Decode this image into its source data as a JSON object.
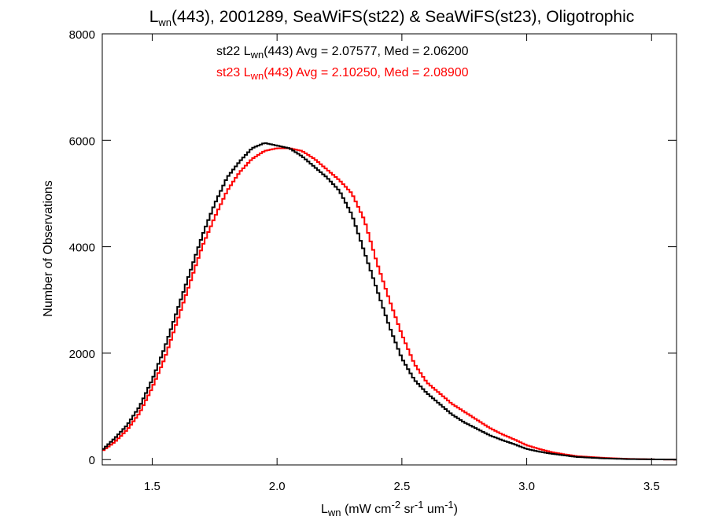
{
  "chart_data": {
    "type": "line",
    "title": {
      "lead": "L",
      "sub": "wn",
      "rest": "(443), 2001289, SeaWiFS(st22) & SeaWiFS(st23), Oligotrophic"
    },
    "xlabel": {
      "lead": "L",
      "sub": "wn",
      "p1": " (mW cm",
      "sup1": "-2",
      "p2": " sr",
      "sup2": "-1",
      "p3": " um",
      "sup3": "-1",
      "p4": ")"
    },
    "ylabel": "Number of Observations",
    "xlim": [
      1.3,
      3.6
    ],
    "ylim": [
      -100,
      8000
    ],
    "x_ticks": [
      "1.5",
      "2.0",
      "2.5",
      "3.0",
      "3.5"
    ],
    "y_ticks": [
      "0",
      "2000",
      "4000",
      "6000",
      "8000"
    ],
    "grid": false,
    "bin_width": 0.01,
    "stats": [
      {
        "series": "st22",
        "color": "#000000",
        "lead": "st22 L",
        "sub": "wn",
        "rest": "(443) Avg = 2.07577, Med = 2.06200"
      },
      {
        "series": "st23",
        "color": "#ff0000",
        "lead": "st23 L",
        "sub": "wn",
        "rest": "(443) Avg = 2.10250, Med = 2.08900"
      }
    ],
    "series": [
      {
        "name": "st22",
        "color": "#000000",
        "x": [
          1.3,
          1.35,
          1.4,
          1.45,
          1.5,
          1.55,
          1.6,
          1.65,
          1.7,
          1.75,
          1.8,
          1.85,
          1.9,
          1.95,
          2.0,
          2.05,
          2.1,
          2.15,
          2.2,
          2.25,
          2.3,
          2.35,
          2.4,
          2.45,
          2.5,
          2.55,
          2.6,
          2.65,
          2.7,
          2.75,
          2.8,
          2.85,
          2.9,
          2.95,
          3.0,
          3.05,
          3.1,
          3.15,
          3.2,
          3.3,
          3.4,
          3.5,
          3.6
        ],
        "y": [
          180,
          400,
          650,
          1000,
          1500,
          2100,
          2800,
          3500,
          4200,
          4800,
          5300,
          5600,
          5850,
          5950,
          5900,
          5850,
          5700,
          5500,
          5300,
          5050,
          4600,
          3900,
          3200,
          2500,
          1900,
          1500,
          1250,
          1050,
          850,
          700,
          580,
          460,
          370,
          290,
          200,
          150,
          110,
          80,
          50,
          25,
          10,
          5,
          0
        ]
      },
      {
        "name": "st23",
        "color": "#ff0000",
        "x": [
          1.3,
          1.35,
          1.4,
          1.45,
          1.5,
          1.55,
          1.6,
          1.65,
          1.7,
          1.75,
          1.8,
          1.85,
          1.9,
          1.95,
          2.0,
          2.05,
          2.1,
          2.15,
          2.2,
          2.25,
          2.3,
          2.35,
          2.4,
          2.45,
          2.5,
          2.55,
          2.6,
          2.65,
          2.7,
          2.75,
          2.8,
          2.85,
          2.9,
          2.95,
          3.0,
          3.05,
          3.1,
          3.15,
          3.2,
          3.3,
          3.4,
          3.5,
          3.6
        ],
        "y": [
          160,
          330,
          560,
          880,
          1350,
          1900,
          2600,
          3300,
          4000,
          4550,
          5050,
          5400,
          5650,
          5800,
          5850,
          5850,
          5800,
          5650,
          5450,
          5250,
          5000,
          4500,
          3700,
          3000,
          2350,
          1800,
          1450,
          1250,
          1050,
          900,
          750,
          600,
          480,
          380,
          270,
          200,
          140,
          100,
          65,
          35,
          15,
          5,
          0
        ]
      }
    ]
  }
}
